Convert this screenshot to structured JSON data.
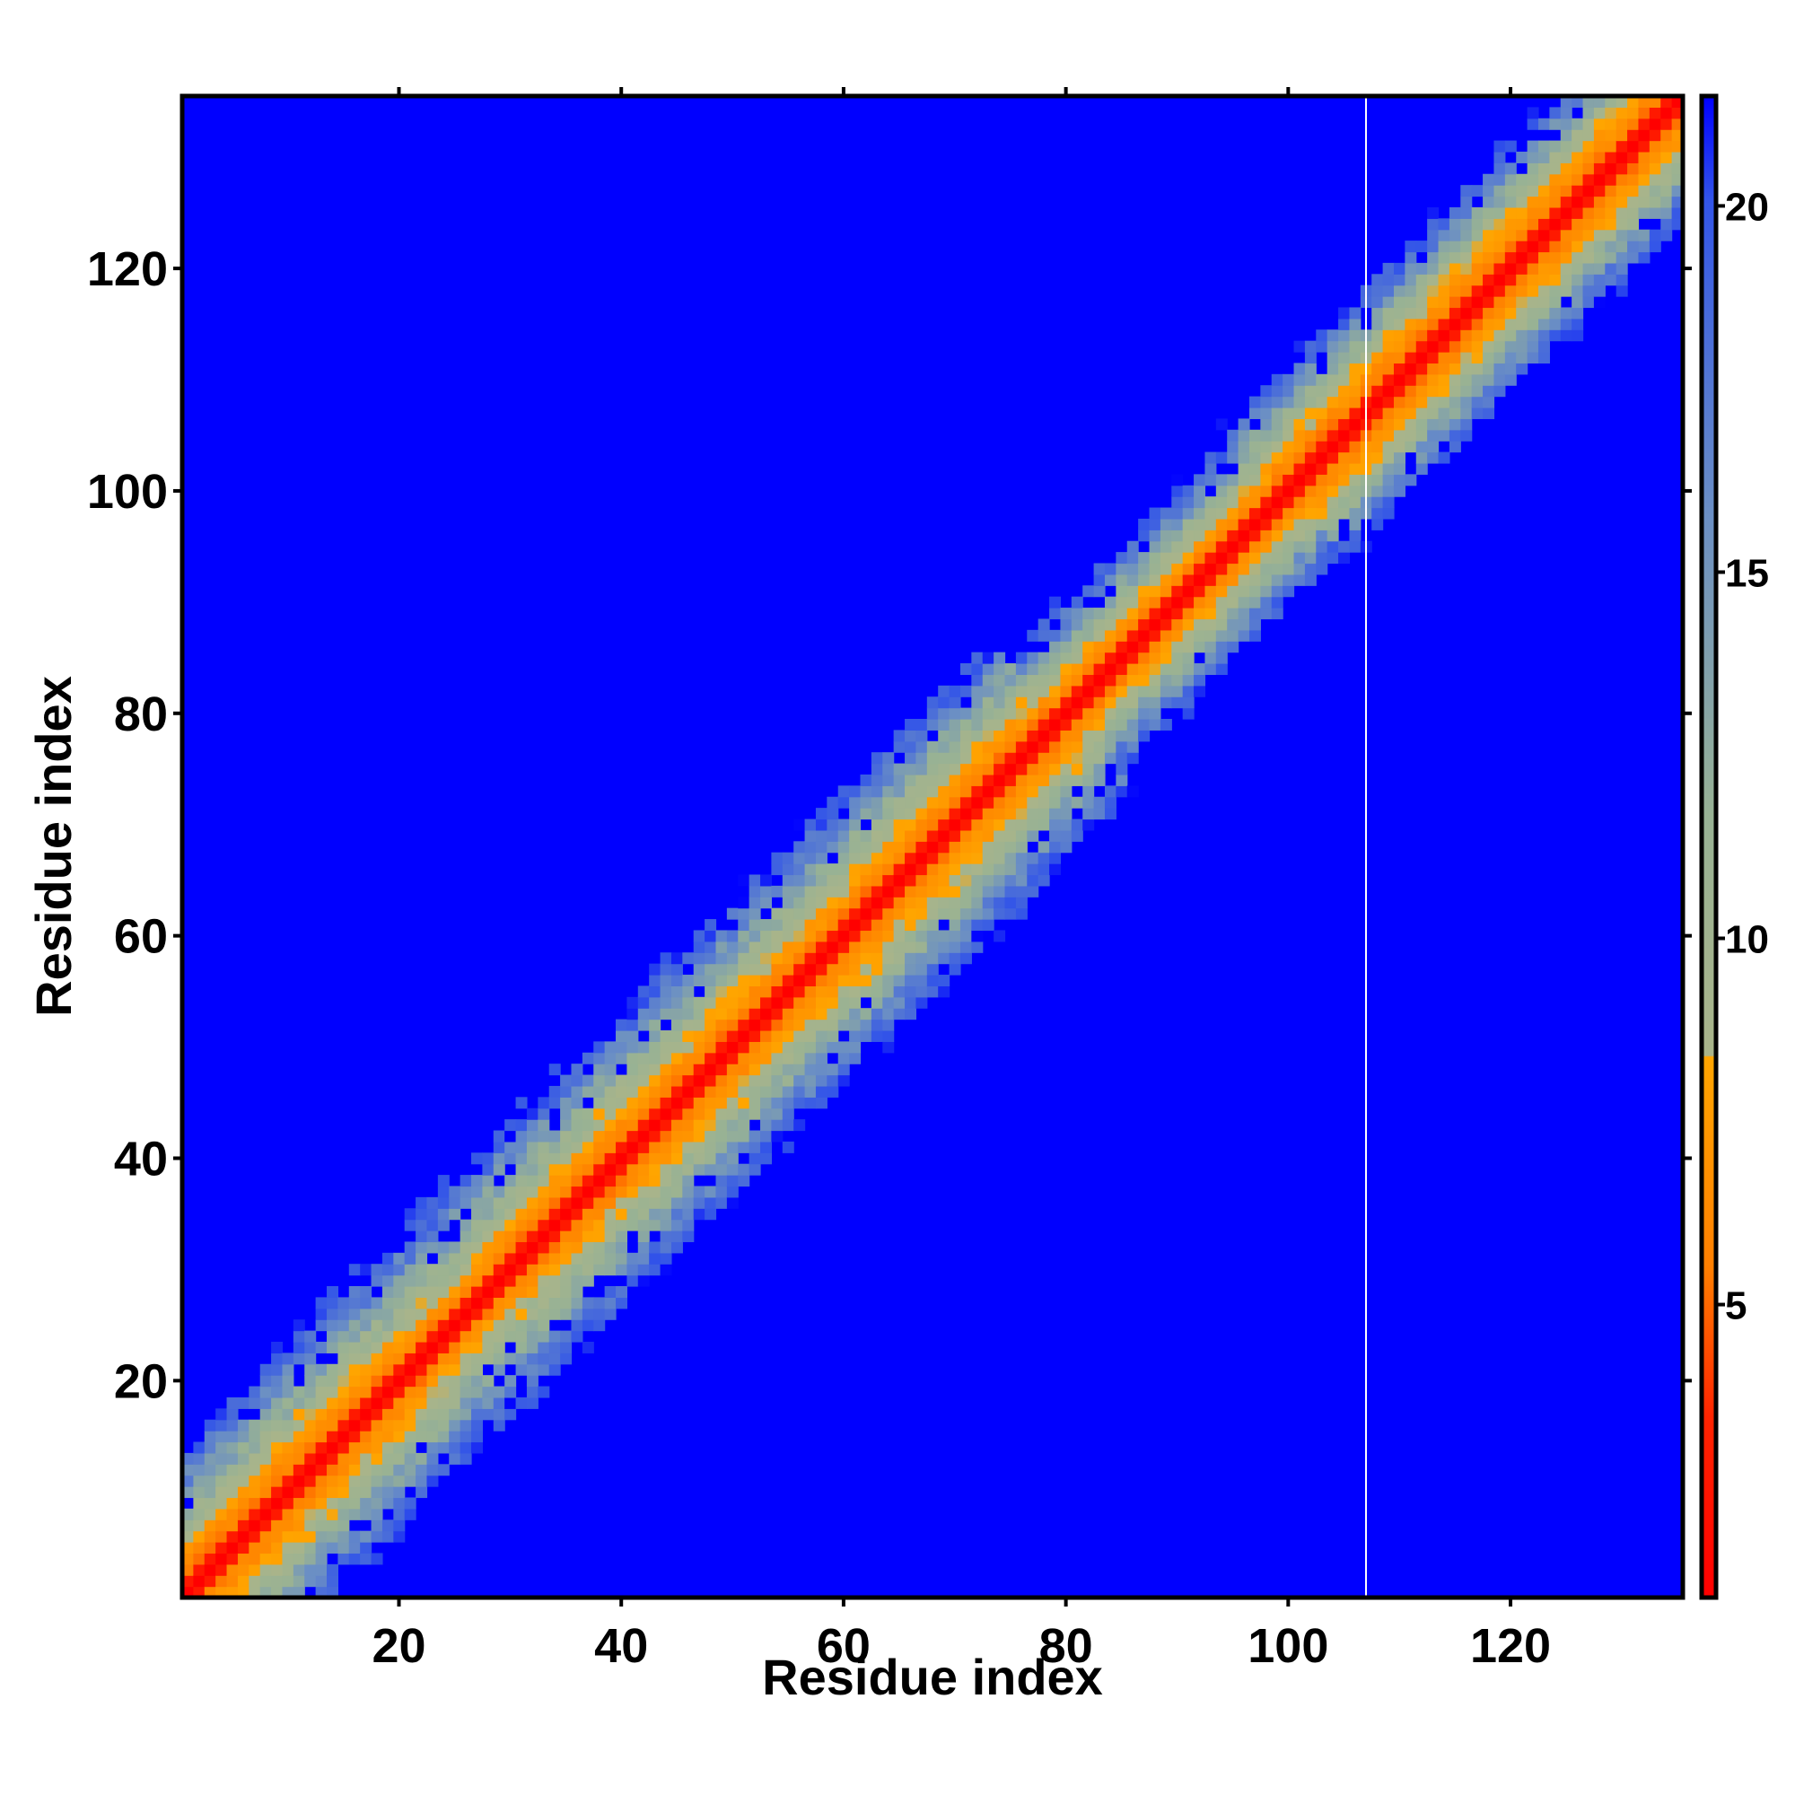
{
  "chart_data": {
    "type": "heatmap",
    "title": "",
    "xlabel": "Residue index",
    "ylabel": "Residue index",
    "xlim": [
      1,
      135
    ],
    "ylim": [
      1,
      135
    ],
    "x_ticks": [
      20,
      40,
      60,
      80,
      100,
      120
    ],
    "y_ticks": [
      20,
      40,
      60,
      80,
      100,
      120
    ],
    "x_tick_labels": [
      "20",
      "40",
      "60",
      "80",
      "100",
      "120"
    ],
    "y_tick_labels": [
      "20",
      "40",
      "60",
      "80",
      "100",
      "120"
    ],
    "colorbar": {
      "range": [
        1,
        21.5
      ],
      "ticks": [
        5,
        10,
        15,
        20
      ],
      "tick_labels": [
        "5",
        "10",
        "15",
        "20"
      ],
      "placement": "right"
    },
    "color_stops": [
      {
        "value": 1,
        "color": "#ff0000"
      },
      {
        "value": 3.5,
        "color": "#ff2a00"
      },
      {
        "value": 5.5,
        "color": "#ff7f00"
      },
      {
        "value": 8.3,
        "color": "#ffa500"
      },
      {
        "value": 8.4,
        "color": "#a9b48a"
      },
      {
        "value": 12,
        "color": "#98b294"
      },
      {
        "value": 16,
        "color": "#6b8fc4"
      },
      {
        "value": 20.5,
        "color": "#3355e8"
      },
      {
        "value": 21,
        "color": "#0000ff"
      }
    ],
    "grid": false,
    "description_pattern": "symmetric-style residue distance map: low values along the diagonal, high values far from it",
    "band_profile": [
      {
        "from": 1,
        "to": 22,
        "red_width": 2,
        "orange_width": 5,
        "band_width": 13
      },
      {
        "from": 22,
        "to": 30,
        "red_width": 2,
        "orange_width": 4,
        "band_width": 13
      },
      {
        "from": 30,
        "to": 60,
        "red_width": 2,
        "orange_width": 5,
        "band_width": 13
      },
      {
        "from": 60,
        "to": 80,
        "red_width": 2,
        "orange_width": 5,
        "band_width": 13
      },
      {
        "from": 80,
        "to": 100,
        "red_width": 2,
        "orange_width": 4,
        "band_width": 10
      },
      {
        "from": 100,
        "to": 135,
        "red_width": 2,
        "orange_width": 5,
        "band_width": 11
      }
    ],
    "vertical_line_x": 107
  }
}
